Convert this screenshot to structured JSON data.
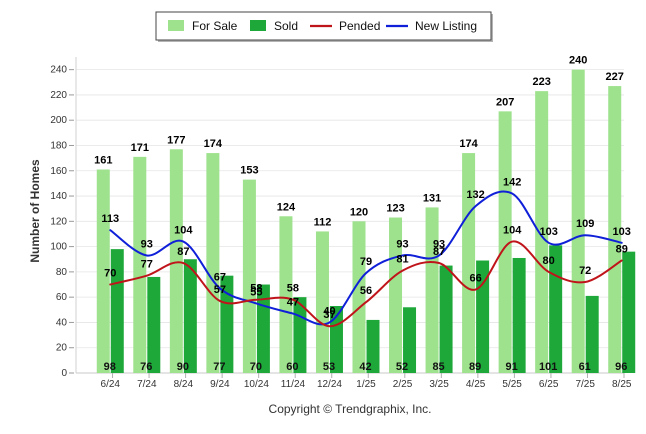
{
  "chart_data": {
    "type": "bar",
    "categories": [
      "6/24",
      "7/24",
      "8/24",
      "9/24",
      "10/24",
      "11/24",
      "12/24",
      "1/25",
      "2/25",
      "3/25",
      "4/25",
      "5/25",
      "6/25",
      "7/25",
      "8/25"
    ],
    "series": [
      {
        "name": "For Sale",
        "type": "bar",
        "color": "#9ee28d",
        "values": [
          161,
          171,
          177,
          174,
          153,
          124,
          112,
          120,
          123,
          131,
          174,
          207,
          223,
          240,
          227
        ]
      },
      {
        "name": "Sold",
        "type": "bar",
        "color": "#1ea83a",
        "values": [
          98,
          76,
          90,
          77,
          70,
          60,
          53,
          42,
          52,
          85,
          89,
          91,
          101,
          61,
          96
        ]
      },
      {
        "name": "Pended",
        "type": "line",
        "color": "#c0141b",
        "values": [
          70,
          77,
          87,
          57,
          58,
          58,
          37,
          56,
          81,
          87,
          66,
          104,
          80,
          72,
          89
        ]
      },
      {
        "name": "New Listing",
        "type": "line",
        "color": "#1020d8",
        "values": [
          113,
          93,
          104,
          67,
          55,
          47,
          40,
          79,
          93,
          93,
          132,
          142,
          103,
          109,
          103
        ]
      }
    ],
    "title": "",
    "xlabel": "",
    "ylabel": "Number of Homes",
    "ylim": [
      0,
      250
    ],
    "yticks": [
      0,
      20,
      40,
      60,
      80,
      100,
      120,
      140,
      160,
      180,
      200,
      220,
      240
    ],
    "grid": true,
    "legend_position": "top-center"
  },
  "copyright": "Copyright © Trendgraphix, Inc."
}
